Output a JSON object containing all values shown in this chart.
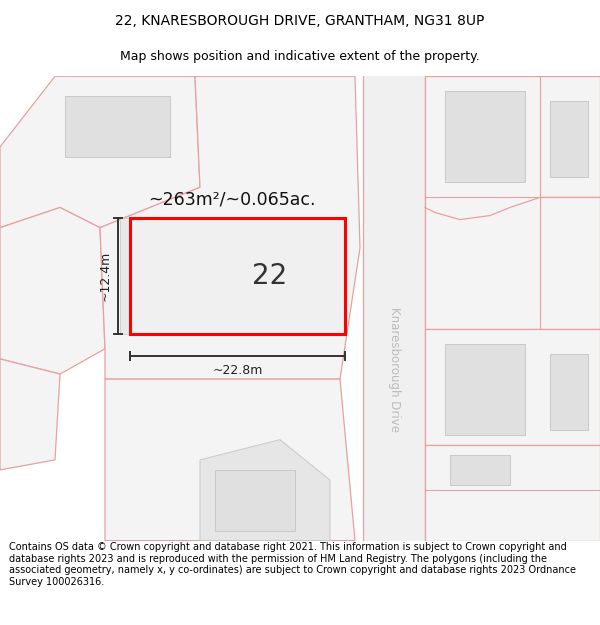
{
  "title_line1": "22, KNARESBOROUGH DRIVE, GRANTHAM, NG31 8UP",
  "title_line2": "Map shows position and indicative extent of the property.",
  "footer_text": "Contains OS data © Crown copyright and database right 2021. This information is subject to Crown copyright and database rights 2023 and is reproduced with the permission of HM Land Registry. The polygons (including the associated geometry, namely x, y co-ordinates) are subject to Crown copyright and database rights 2023 Ordnance Survey 100026316.",
  "map_bg": "#f7f7f7",
  "parcel_fill": "#f0f0f0",
  "parcel_edge": "#e8a0a0",
  "building_fill": "#e0e0e0",
  "building_edge": "#c8c8c8",
  "property_fill": "#f0f0f0",
  "property_edge": "#ff0000",
  "road_fill": "#ffffff",
  "road_label": "Knaresborough Drive",
  "area_label": "~263m²/~0.065ac.",
  "number_label": "22",
  "width_label": "~22.8m",
  "height_label": "~12.4m",
  "title_fontsize": 10,
  "subtitle_fontsize": 9,
  "footer_fontsize": 7.0
}
